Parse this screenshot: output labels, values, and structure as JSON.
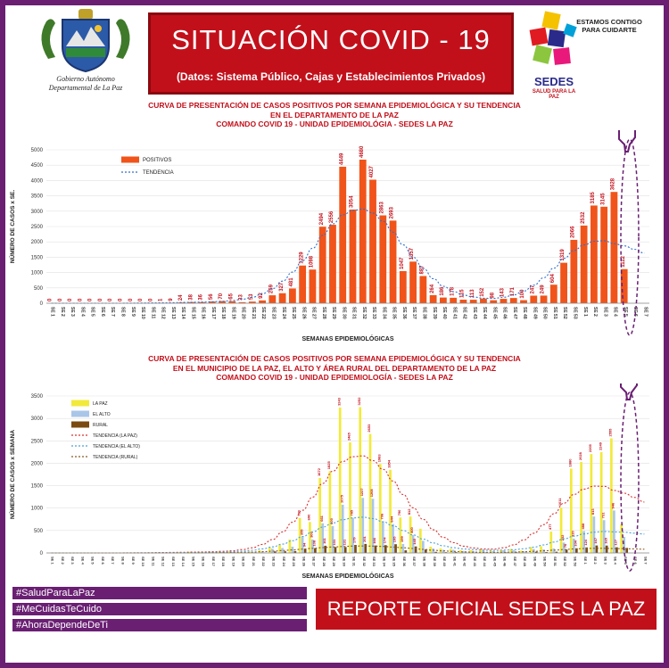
{
  "header": {
    "title": "SITUACIÓN  COVID - 19",
    "subtitle": "(Datos: Sistema Público, Cajas y Establecimientos Privados)",
    "gov_logo_line1": "Gobierno Autónomo",
    "gov_logo_line2": "Departamental de La Paz",
    "sedes_tagline": "ESTAMOS CONTIGO PARA CUIDARTE",
    "sedes_name": "SEDES",
    "sedes_subname": "SALUD PARA LA PAZ"
  },
  "footer": {
    "hashtags": [
      "#SaludParaLaPaz",
      "#MeCuidasTeCuido",
      "#AhoraDependeDeTi"
    ],
    "report": "REPORTE OFICIAL SEDES LA PAZ"
  },
  "colors": {
    "frame": "#6a1f73",
    "title_red": "#c2101b",
    "bar_orange": "#f0541a",
    "bar_yellow": "#f2ea3a",
    "bar_lightblue": "#a9c6e8",
    "bar_brown": "#7a4a10",
    "trend_blue": "#2f6fd0"
  },
  "chart_data": [
    {
      "type": "bar",
      "title_lines": [
        "CURVA DE PRESENTACIÓN DE CASOS POSITIVOS POR SEMANA EPIDEMIOLÓGICA Y SU TENDENCIA",
        "EN EL DEPARTAMENTO DE LA PAZ",
        "COMANDO COVID 19 - UNIDAD EPIDEMIOLÓGIA - SEDES LA PAZ"
      ],
      "xlabel": "SEMANAS EPIDEMIOLÓGICAS",
      "ylabel": "NÚMERO DE CASOS x SE.",
      "ylim": [
        0,
        5000
      ],
      "yticks": [
        0,
        500,
        1000,
        1500,
        2000,
        2500,
        3000,
        3500,
        4000,
        4500,
        5000
      ],
      "legend_position": "top-left",
      "categories": [
        "SE 1",
        "SE 2",
        "SE 3",
        "SE 4",
        "SE 5",
        "SE 6",
        "SE 7",
        "SE 8",
        "SE 9",
        "SE 10",
        "SE 11",
        "SE 12",
        "SE 13",
        "SE 14",
        "SE 15",
        "SE 16",
        "SE 17",
        "SE 18",
        "SE 19",
        "SE 20",
        "SE 21",
        "SE 22",
        "SE 23",
        "SE 24",
        "SE 25",
        "SE 26",
        "SE 27",
        "SE 28",
        "SE 29",
        "SE 30",
        "SE 31",
        "SE 32",
        "SE 33",
        "SE 34",
        "SE 35",
        "SE 36",
        "SE 37",
        "SE 38",
        "SE 39",
        "SE 40",
        "SE 41",
        "SE 42",
        "SE 43",
        "SE 44",
        "SE 45",
        "SE 46",
        "SE 47",
        "SE 48",
        "SE 49",
        "SE 50",
        "SE 51",
        "SE 52",
        "SE 53",
        "SE 1",
        "SE 2",
        "SE 3",
        "SE 4",
        "SE 5",
        "SE 6",
        "SE 7"
      ],
      "series": [
        {
          "name": "POSITIVOS",
          "color": "#f0541a",
          "values": [
            0,
            0,
            0,
            0,
            0,
            0,
            0,
            0,
            0,
            0,
            0,
            1,
            9,
            24,
            38,
            36,
            56,
            70,
            65,
            33,
            53,
            92,
            259,
            327,
            481,
            1229,
            1098,
            2494,
            2556,
            4449,
            3054,
            4680,
            4027,
            2863,
            2693,
            1047,
            1357,
            887,
            264,
            186,
            178,
            115,
            113,
            152,
            98,
            143,
            171,
            100,
            247,
            249,
            604,
            1319,
            2066,
            2532,
            3185,
            3145,
            3628,
            1112,
            0,
            0
          ],
          "labels": [
            "0",
            "0",
            "0",
            "0",
            "0",
            "0",
            "0",
            "0",
            "0",
            "0",
            "0",
            "1",
            "9",
            "24",
            "38",
            "36",
            "56",
            "70",
            "65",
            "33",
            "53",
            "92",
            "259",
            "327",
            "481",
            "1229",
            "1098",
            "2494",
            "2556",
            "4449",
            "3054",
            "4680",
            "4027",
            "2863",
            "2693",
            "1047",
            "1357",
            "887",
            "264",
            "186",
            "178",
            "115",
            "113",
            "152",
            "98",
            "143",
            "171",
            "100",
            "247",
            "249",
            "604",
            "1319",
            "2066",
            "2532",
            "3185",
            "3145",
            "3628",
            "1112",
            "",
            ""
          ]
        },
        {
          "name": "TENDENCIA",
          "type": "line",
          "style": "dotted",
          "color": "#2f6fd0"
        }
      ]
    },
    {
      "type": "bar",
      "title_lines": [
        "CURVA DE PRESENTACIÓN DE CASOS POSITIVOS POR SEMANA EPIDEMIOLÓGICA Y SU TENDENCIA",
        "EN EL  MUNICIPIO DE LA PAZ, EL ALTO Y ÁREA RURAL DEL DEPARTAMENTO DE LA PAZ",
        "COMANDO COVID 19 - UNIDAD EPIDEMIOLOGÍA - SEDES LA PAZ"
      ],
      "xlabel": "SEMANAS EPIDEMIOLÓGICAS",
      "ylabel": "NÚMERO DE CASOS x SEMANA",
      "ylim": [
        0,
        3500
      ],
      "yticks": [
        0,
        500,
        1000,
        1500,
        2000,
        2500,
        3000,
        3500
      ],
      "legend_position": "top-left",
      "categories": [
        "SE 1",
        "SE 2",
        "SE 3",
        "SE 4",
        "SE 5",
        "SE 6",
        "SE 7",
        "SE 8",
        "SE 9",
        "SE 10",
        "SE 11",
        "SE 12",
        "SE 13",
        "SE 14",
        "SE 15",
        "SE 16",
        "SE 17",
        "SE 18",
        "SE 19",
        "SE 20",
        "SE 21",
        "SE 22",
        "SE 23",
        "SE 24",
        "SE 25",
        "SE 26",
        "SE 27",
        "SE 28",
        "SE 29",
        "SE 30",
        "SE 31",
        "SE 32",
        "SE 33",
        "SE 34",
        "SE 35",
        "SE 36",
        "SE 37",
        "SE 38",
        "SE 39",
        "SE 40",
        "SE 41",
        "SE 42",
        "SE 43",
        "SE 44",
        "SE 45",
        "SE 46",
        "SE 47",
        "SE 48",
        "SE 49",
        "SE 50",
        "SE 51",
        "SE 52",
        "SE 53",
        "SE 1",
        "SE 2",
        "SE 3",
        "SE 4",
        "SE 5",
        "SE 6",
        "SE 7"
      ],
      "series": [
        {
          "name": "LA PAZ",
          "color": "#f2ea3a",
          "values": [
            0,
            0,
            0,
            0,
            0,
            0,
            0,
            0,
            0,
            0,
            0,
            1,
            5,
            15,
            25,
            20,
            30,
            40,
            35,
            20,
            30,
            60,
            130,
            180,
            300,
            780,
            690,
            1672,
            1825,
            3243,
            2465,
            3252,
            2653,
            1983,
            1854,
            790,
            812,
            540,
            140,
            100,
            90,
            60,
            60,
            80,
            50,
            70,
            90,
            50,
            130,
            150,
            477,
            1011,
            1880,
            2028,
            2205,
            2249,
            2555,
            640,
            0,
            0
          ],
          "labels": [
            "",
            "",
            "",
            "",
            "",
            "",
            "",
            "",
            "",
            "",
            "",
            "",
            "",
            "",
            "",
            "",
            "",
            "",
            "",
            "",
            "",
            "",
            "",
            "",
            "",
            "780",
            "690",
            "1672",
            "1825",
            "3243",
            "2465",
            "3252",
            "2653",
            "1983",
            "1854",
            "790",
            "812",
            "",
            "",
            "",
            "",
            "",
            "",
            "",
            "",
            "",
            "",
            "",
            "",
            "",
            "477",
            "1011",
            "1880",
            "2028",
            "2205",
            "2249",
            "2555",
            "",
            "",
            ""
          ]
        },
        {
          "name": "EL ALTO",
          "color": "#a9c6e8",
          "values": [
            0,
            0,
            0,
            0,
            0,
            0,
            0,
            0,
            0,
            0,
            0,
            0,
            3,
            7,
            10,
            12,
            18,
            22,
            20,
            10,
            15,
            25,
            95,
            110,
            140,
            355,
            300,
            661,
            600,
            1075,
            785,
            1227,
            1208,
            706,
            644,
            199,
            400,
            270,
            100,
            70,
            70,
            45,
            45,
            60,
            40,
            60,
            65,
            40,
            90,
            80,
            100,
            232,
            320,
            488,
            813,
            731,
            946,
            360,
            0,
            0
          ],
          "labels": [
            "",
            "",
            "",
            "",
            "",
            "",
            "",
            "",
            "",
            "",
            "",
            "",
            "",
            "",
            "",
            "",
            "",
            "",
            "",
            "",
            "",
            "",
            "",
            "",
            "",
            "355",
            "300",
            "661",
            "600",
            "1075",
            "785",
            "1227",
            "1208",
            "706",
            "644",
            "199",
            "400",
            "",
            "",
            "",
            "",
            "",
            "",
            "",
            "",
            "",
            "",
            "",
            "",
            "",
            "",
            "232",
            "320",
            "488",
            "813",
            "731",
            "946",
            "",
            "",
            ""
          ]
        },
        {
          "name": "RURAL",
          "color": "#7a4a10",
          "values": [
            0,
            0,
            0,
            0,
            0,
            0,
            0,
            0,
            0,
            0,
            0,
            0,
            1,
            2,
            3,
            4,
            8,
            8,
            10,
            3,
            8,
            7,
            34,
            37,
            41,
            94,
            108,
            161,
            131,
            131,
            179,
            201,
            166,
            174,
            195,
            58,
            145,
            77,
            24,
            16,
            18,
            10,
            8,
            12,
            8,
            13,
            16,
            10,
            27,
            19,
            27,
            76,
            104,
            124,
            167,
            165,
            127,
            112,
            0,
            0
          ],
          "labels": [
            "",
            "",
            "",
            "",
            "",
            "",
            "",
            "",
            "",
            "",
            "",
            "",
            "",
            "",
            "",
            "",
            "",
            "",
            "",
            "",
            "",
            "",
            "",
            "",
            "",
            "94",
            "108",
            "161",
            "131",
            "131",
            "179",
            "201",
            "166",
            "174",
            "195",
            "",
            "145",
            "",
            "",
            "",
            "",
            "",
            "",
            "",
            "",
            "",
            "",
            "",
            "",
            "",
            "",
            "76",
            "104",
            "124",
            "167",
            "165",
            "127",
            "",
            "",
            ""
          ]
        },
        {
          "name": "TENDENCIA (LA PAZ)",
          "type": "line",
          "style": "dotted",
          "color": "#d93030"
        },
        {
          "name": "TENDENCIA (EL ALTO)",
          "type": "line",
          "style": "dotted",
          "color": "#4aa0d8"
        },
        {
          "name": "TENDENCIA (RURAL)",
          "type": "line",
          "style": "dotted",
          "color": "#8a5a20"
        }
      ]
    }
  ]
}
